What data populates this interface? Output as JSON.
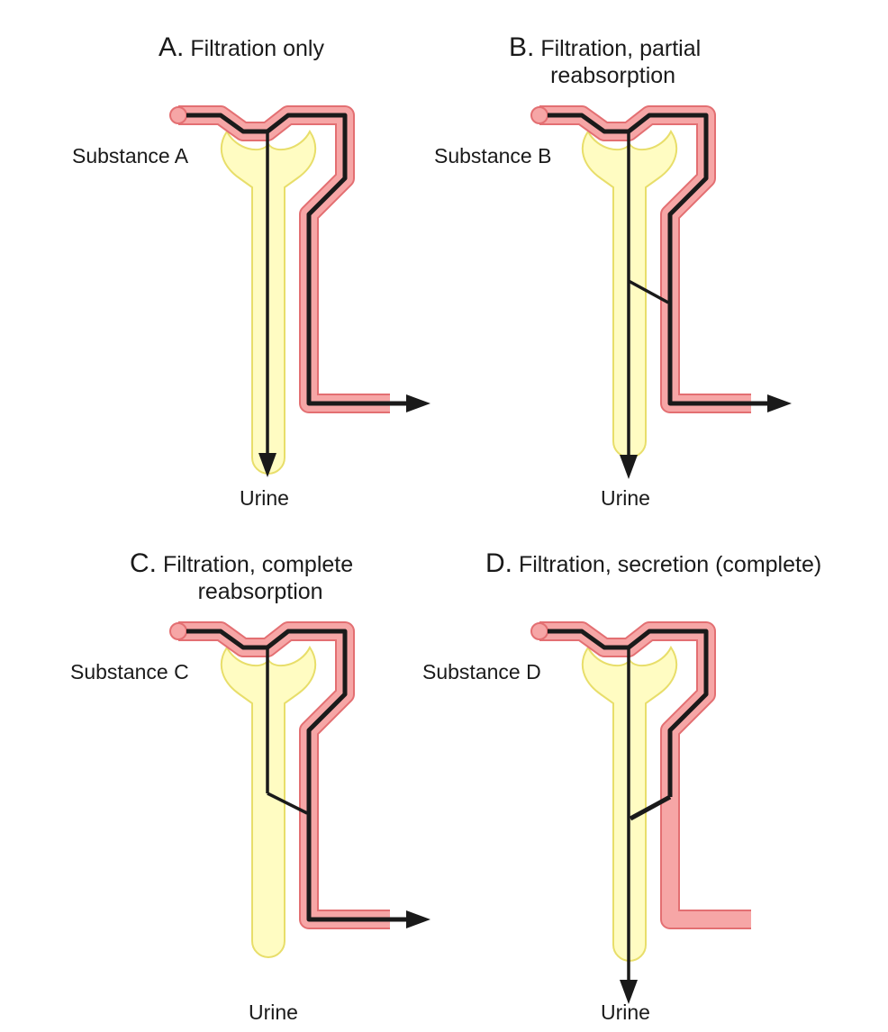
{
  "colors": {
    "tubule_fill": "#fffcc2",
    "tubule_stroke": "#e8de6a",
    "vessel_fill": "#f6a6a6",
    "vessel_stroke": "#e36f72",
    "path": "#1a1a1a"
  },
  "panels": [
    {
      "letter": "A.",
      "title_lines": [
        "Filtration only"
      ],
      "substance": "Substance A",
      "urine": "Urine",
      "pathway": "filtration_only"
    },
    {
      "letter": "B.",
      "title_lines": [
        "Filtration, partial",
        "reabsorption"
      ],
      "substance": "Substance B",
      "urine": "Urine",
      "pathway": "partial_reabsorption"
    },
    {
      "letter": "C.",
      "title_lines": [
        "Filtration, complete",
        "reabsorption"
      ],
      "substance": "Substance C",
      "urine": "Urine",
      "pathway": "complete_reabsorption"
    },
    {
      "letter": "D.",
      "title_lines": [
        "Filtration, secretion (complete)"
      ],
      "substance": "Substance D",
      "urine": "Urine",
      "pathway": "complete_secretion"
    }
  ]
}
